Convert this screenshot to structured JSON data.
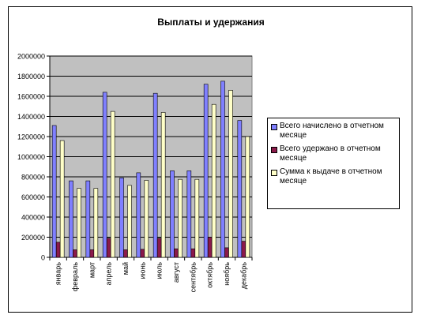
{
  "chart_data": {
    "type": "bar",
    "title": "Выплаты и удержания",
    "xlabel": "",
    "ylabel": "",
    "ylim": [
      0,
      2000000
    ],
    "yticks": [
      0,
      200000,
      400000,
      600000,
      800000,
      1000000,
      1200000,
      1400000,
      1600000,
      1800000,
      2000000
    ],
    "grid": true,
    "legend_position": "right",
    "categories": [
      "январь",
      "февраль",
      "март",
      "апрель",
      "май",
      "июнь",
      "июль",
      "август",
      "сентябрь",
      "октябрь",
      "ноябрь",
      "декабрь"
    ],
    "series": [
      {
        "name": "Всего начислено в отчетном месяце",
        "color": "#8080ff",
        "values": [
          1310000,
          760000,
          760000,
          1640000,
          790000,
          840000,
          1630000,
          860000,
          860000,
          1720000,
          1750000,
          1360000
        ]
      },
      {
        "name": "Всего удержано в отчетном месяце",
        "color": "#8b1a4a",
        "values": [
          150000,
          75000,
          75000,
          190000,
          75000,
          80000,
          190000,
          85000,
          85000,
          200000,
          95000,
          160000
        ]
      },
      {
        "name": "Сумма к выдаче в отчетном месяце",
        "color": "#ffffc8",
        "values": [
          1160000,
          685000,
          685000,
          1450000,
          715000,
          765000,
          1440000,
          775000,
          775000,
          1520000,
          1660000,
          1200000
        ]
      }
    ],
    "plot_bg": "#c0c0c0"
  }
}
